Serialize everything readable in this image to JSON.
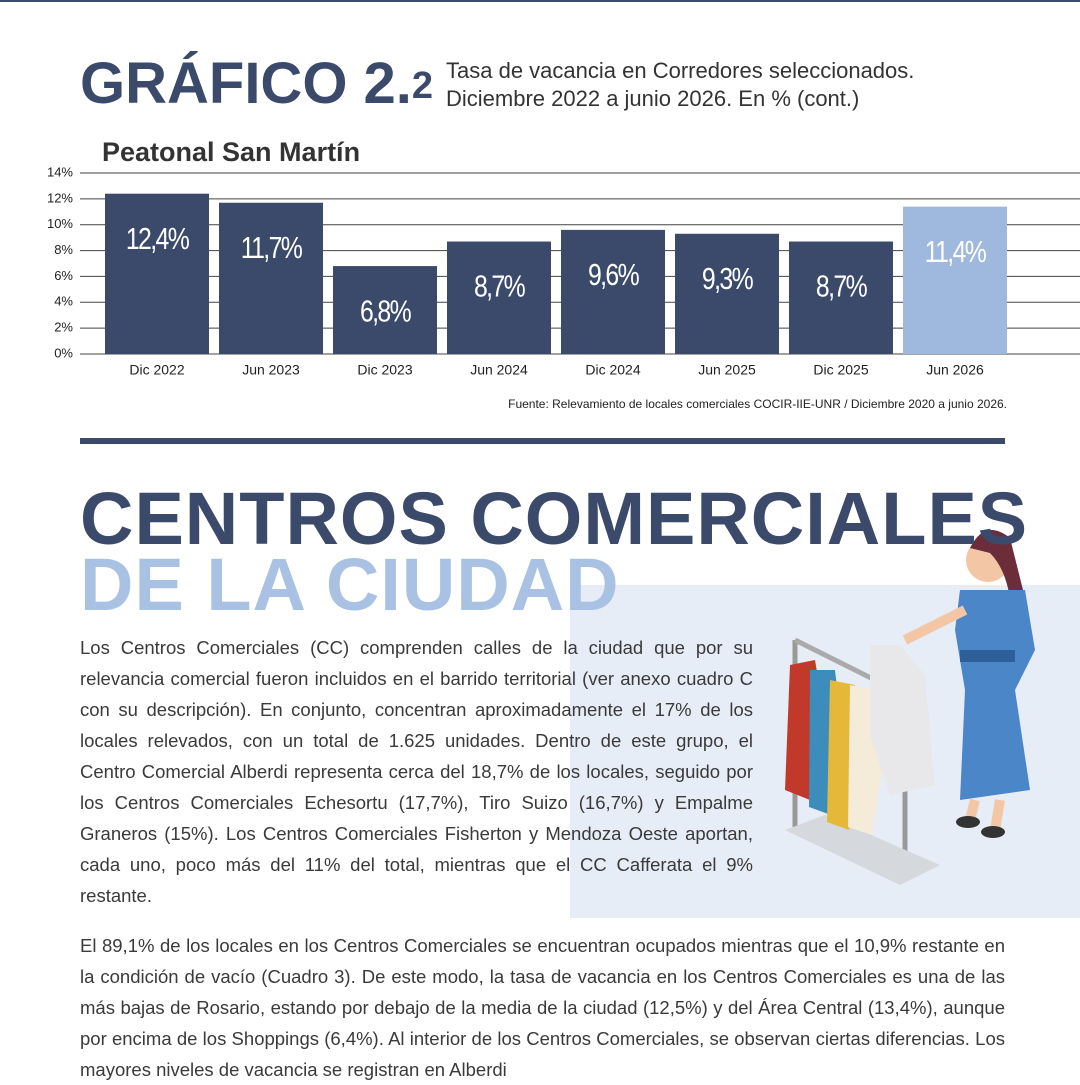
{
  "header": {
    "label": "GRÁFICO 2.",
    "label_suffix": "2",
    "subtitle_lines": [
      "Tasa de vacancia en Corredores seleccionados.",
      "Diciembre 2022 a junio 2026. En % (cont.)"
    ]
  },
  "chart_data": {
    "type": "bar",
    "title": "Peatonal San Martín",
    "categories": [
      "Dic 2022",
      "Jun 2023",
      "Dic 2023",
      "Jun 2024",
      "Dic 2024",
      "Jun 2025",
      "Dic 2025",
      "Jun 2026"
    ],
    "values": [
      12.4,
      11.7,
      6.8,
      8.7,
      9.6,
      9.3,
      8.7,
      11.4
    ],
    "value_labels": [
      "12,4%",
      "11,7%",
      "6,8%",
      "8,7%",
      "9,6%",
      "9,3%",
      "8,7%",
      "11,4%"
    ],
    "colors": [
      "#3b4a6b",
      "#3b4a6b",
      "#3b4a6b",
      "#3b4a6b",
      "#3b4a6b",
      "#3b4a6b",
      "#3b4a6b",
      "#9fb8dd"
    ],
    "ylim": [
      0,
      14
    ],
    "yticks": [
      {
        "value": 0,
        "label": "0%"
      },
      {
        "value": 2,
        "label": "2%"
      },
      {
        "value": 4,
        "label": "4%"
      },
      {
        "value": 6,
        "label": "6%"
      },
      {
        "value": 8,
        "label": "8%"
      },
      {
        "value": 10,
        "label": "10%"
      },
      {
        "value": 12,
        "label": "12%"
      },
      {
        "value": 14,
        "label": "14%"
      }
    ],
    "grid": true,
    "source": "Fuente: Relevamiento de locales comerciales COCIR-IIE-UNR / Diciembre 2020 a junio 2026."
  },
  "section": {
    "title_lines": [
      "CENTROS COMERCIALES",
      "DE LA CIUDAD"
    ],
    "paragraphs": [
      "Los Centros Comerciales (CC) comprenden calles de la ciudad que por su relevancia comercial fueron incluidos en el barrido territorial (ver anexo cuadro C con su descripción). En conjunto, concentran aproximadamente el 17% de los locales relevados, con un total de 1.625 unidades. Dentro de este grupo, el Centro Comercial Alberdi representa cerca del 18,7% de los locales, seguido por los Centros Comerciales Echesortu (17,7%), Tiro Suizo (16,7%) y Empalme Graneros (15%). Los Centros Comerciales Fisherton y Mendoza Oeste aportan, cada uno, poco más del 11% del total, mientras que el CC Cafferata el 9% restante.",
      "El 89,1% de los locales en los Centros Comerciales se encuentran ocupados mientras que el 10,9% restante en la condición de vacío (Cuadro 3). De este modo, la tasa de vacancia en los Centros Comerciales es una de las más bajas de Rosario, estando por debajo de la media de la ciudad (12,5%) y del Área Central (13,4%), aunque por encima de los Shoppings (6,4%). Al interior de los Centros Comerciales, se observan ciertas diferencias. Los mayores niveles de vacancia se registran en Alberdi"
    ]
  }
}
